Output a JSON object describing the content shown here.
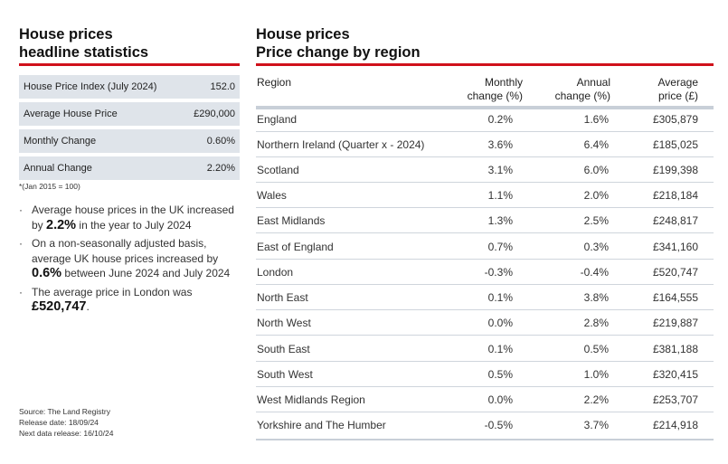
{
  "left": {
    "title_line1": "House prices",
    "title_line2": "headline statistics",
    "stats": [
      {
        "label": "House Price Index (July 2024)",
        "value": "152.0"
      },
      {
        "label": "Average House Price",
        "value": "£290,000"
      },
      {
        "label": "Monthly Change",
        "value": "0.60%"
      },
      {
        "label": "Annual Change",
        "value": "2.20%"
      }
    ],
    "footnote": "*(Jan 2015 = 100)",
    "bullets": [
      {
        "pre": "Average house prices in the UK increased by ",
        "bold": "2.2%",
        "post": " in the year to July 2024"
      },
      {
        "pre": "On a non-seasonally adjusted basis, average UK house prices increased by ",
        "bold": "0.6%",
        "post": " between June 2024 and July 2024"
      },
      {
        "pre": "The average price in London was ",
        "bold": "£520,747",
        "post": "."
      }
    ],
    "source": "Source: The Land Registry",
    "release_date": "Release date: 18/09/24",
    "next_release": "Next data release: 16/10/24"
  },
  "right": {
    "title_line1": "House prices",
    "title_line2": "Price change by region",
    "headers": {
      "region": "Region",
      "monthly_1": "Monthly",
      "monthly_2": "change (%)",
      "annual_1": "Annual",
      "annual_2": "change (%)",
      "price_1": "Average",
      "price_2": "price (£)"
    },
    "rows": [
      {
        "region": "England",
        "monthly": "0.2%",
        "annual": "1.6%",
        "price": "£305,879"
      },
      {
        "region": "Northern Ireland (Quarter x - 2024)",
        "monthly": "3.6%",
        "annual": "6.4%",
        "price": "£185,025"
      },
      {
        "region": "Scotland",
        "monthly": "3.1%",
        "annual": "6.0%",
        "price": "£199,398"
      },
      {
        "region": "Wales",
        "monthly": "1.1%",
        "annual": "2.0%",
        "price": "£218,184"
      },
      {
        "region": "East Midlands",
        "monthly": "1.3%",
        "annual": "2.5%",
        "price": "£248,817"
      },
      {
        "region": "East of England",
        "monthly": "0.7%",
        "annual": "0.3%",
        "price": "£341,160"
      },
      {
        "region": "London",
        "monthly": "-0.3%",
        "annual": "-0.4%",
        "price": "£520,747"
      },
      {
        "region": "North East",
        "monthly": "0.1%",
        "annual": "3.8%",
        "price": "£164,555"
      },
      {
        "region": "North West",
        "monthly": "0.0%",
        "annual": "2.8%",
        "price": "£219,887"
      },
      {
        "region": "South East",
        "monthly": "0.1%",
        "annual": "0.5%",
        "price": "£381,188"
      },
      {
        "region": "South West",
        "monthly": "0.5%",
        "annual": "1.0%",
        "price": "£320,415"
      },
      {
        "region": "West Midlands Region",
        "monthly": "0.0%",
        "annual": "2.2%",
        "price": "£253,707"
      },
      {
        "region": "Yorkshire and The Humber",
        "monthly": "-0.5%",
        "annual": "3.7%",
        "price": "£214,918"
      }
    ]
  },
  "colors": {
    "accent": "#d0111b",
    "stat_bg": "#dfe4ea"
  }
}
